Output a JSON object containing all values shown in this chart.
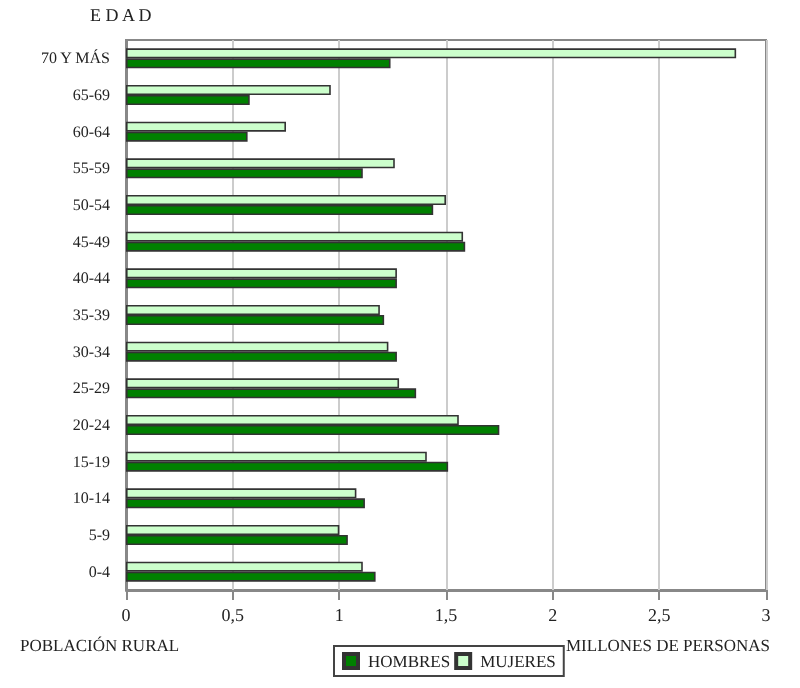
{
  "chart_data": {
    "type": "bar",
    "orientation": "horizontal",
    "ylabel": "E D A D",
    "xlabel": "MILLONES DE PERSONAS",
    "annotations": [
      "POBLACIÓN RURAL"
    ],
    "categories": [
      "70 Y MÁS",
      "65-69",
      "60-64",
      "55-59",
      "50-54",
      "45-49",
      "40-44",
      "35-39",
      "30-34",
      "25-29",
      "20-24",
      "15-19",
      "10-14",
      "5-9",
      "0-4"
    ],
    "series": [
      {
        "name": "HOMBRES",
        "color": "#008000",
        "values": [
          1.24,
          0.58,
          0.57,
          1.11,
          1.44,
          1.59,
          1.27,
          1.21,
          1.27,
          1.36,
          1.75,
          1.51,
          1.12,
          1.04,
          1.17
        ]
      },
      {
        "name": "MUJERES",
        "color": "#ccffcc",
        "values": [
          2.86,
          0.96,
          0.75,
          1.26,
          1.5,
          1.58,
          1.27,
          1.19,
          1.23,
          1.28,
          1.56,
          1.41,
          1.08,
          1.0,
          1.11
        ]
      }
    ],
    "xlim": [
      0,
      3
    ],
    "xticks": [
      0,
      {
        "value": 0.5,
        "label": "0,5"
      },
      1,
      {
        "value": 1.5,
        "label": "1,5"
      },
      2,
      {
        "value": 2.5,
        "label": "2,5"
      },
      3
    ],
    "grid": "x",
    "legend": "bottom"
  }
}
